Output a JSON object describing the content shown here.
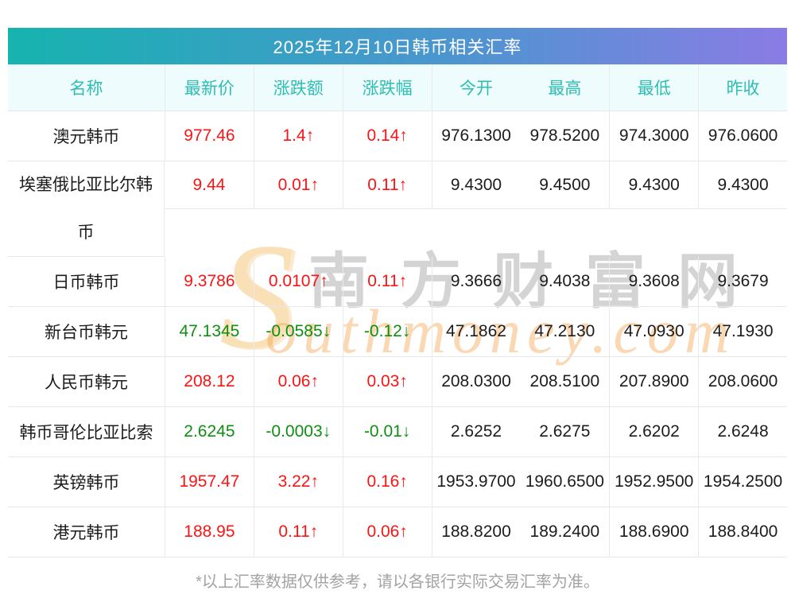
{
  "title": "2025年12月10日韩币相关汇率",
  "columns": [
    "名称",
    "最新价",
    "涨跌额",
    "涨跌幅",
    "今开",
    "最高",
    "最低",
    "昨收"
  ],
  "rows": [
    {
      "name": "澳元韩币",
      "tall": false,
      "trend": "up",
      "last": "977.46",
      "change": "1.4↑",
      "pct": "0.14↑",
      "open": "976.1300",
      "high": "978.5200",
      "low": "974.3000",
      "prev": "976.0600"
    },
    {
      "name": "埃塞俄比亚比尔韩币",
      "tall": true,
      "trend": "up",
      "last": "9.44",
      "change": "0.01↑",
      "pct": "0.11↑",
      "open": "9.4300",
      "high": "9.4500",
      "low": "9.4300",
      "prev": "9.4300"
    },
    {
      "name": "日币韩币",
      "tall": false,
      "trend": "up",
      "last": "9.3786",
      "change": "0.0107↑",
      "pct": "0.11↑",
      "open": "9.3666",
      "high": "9.4038",
      "low": "9.3608",
      "prev": "9.3679"
    },
    {
      "name": "新台币韩元",
      "tall": false,
      "trend": "down",
      "last": "47.1345",
      "change": "-0.0585↓",
      "pct": "-0.12↓",
      "open": "47.1862",
      "high": "47.2130",
      "low": "47.0930",
      "prev": "47.1930"
    },
    {
      "name": "人民币韩元",
      "tall": false,
      "trend": "up",
      "last": "208.12",
      "change": "0.06↑",
      "pct": "0.03↑",
      "open": "208.0300",
      "high": "208.5100",
      "low": "207.8900",
      "prev": "208.0600"
    },
    {
      "name": "韩币哥伦比亚比索",
      "tall": false,
      "trend": "down",
      "last": "2.6245",
      "change": "-0.0003↓",
      "pct": "-0.01↓",
      "open": "2.6252",
      "high": "2.6275",
      "low": "2.6202",
      "prev": "2.6248"
    },
    {
      "name": "英镑韩币",
      "tall": false,
      "trend": "up",
      "last": "1957.47",
      "change": "3.22↑",
      "pct": "0.16↑",
      "open": "1953.9700",
      "high": "1960.6500",
      "low": "1952.9500",
      "prev": "1954.2500"
    },
    {
      "name": "港元韩币",
      "tall": false,
      "trend": "up",
      "last": "188.95",
      "change": "0.11↑",
      "pct": "0.06↑",
      "open": "188.8200",
      "high": "189.2400",
      "low": "188.6900",
      "prev": "188.8400"
    }
  ],
  "footer": "*以上汇率数据仅供参考，请以各银行实际交易汇率为准。",
  "watermark": {
    "s": "S",
    "en": "outhmoney.com",
    "cn": "南方财富网"
  },
  "colors": {
    "up": "#fa1414",
    "down": "#0e8f11",
    "header_text": "#2ebdb2",
    "title_gradient_start": "#16b3af",
    "title_gradient_mid": "#4a96cf",
    "title_gradient_end": "#8a7ce4",
    "header_bg": "#eefcfd",
    "border": "#e5e8e8",
    "footer_text": "#a3a3a3"
  }
}
